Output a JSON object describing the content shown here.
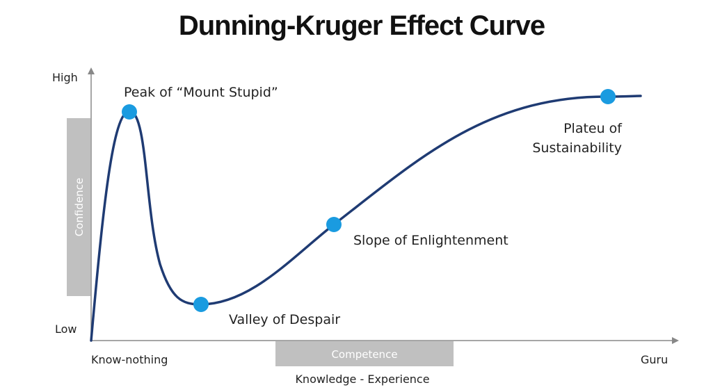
{
  "title": "Dunning-Kruger Effect Curve",
  "y_axis": {
    "high_label": "High",
    "low_label": "Low",
    "band_label": "Confidence"
  },
  "x_axis": {
    "start_label": "Know-nothing",
    "end_label": "Guru",
    "band_label": "Competence",
    "caption": "Knowledge - Experience"
  },
  "stages": {
    "peak": {
      "line1": "Peak of “Mount Stupid”"
    },
    "valley": {
      "line1": "Valley of Despair"
    },
    "slope": {
      "line1": "Slope of Enlightenment"
    },
    "plateau": {
      "line1": "Plateu of",
      "line2": "Sustainability"
    }
  },
  "colors": {
    "curve": "#1f3b73",
    "marker": "#1a9be0",
    "band": "#c0c0c0",
    "axis": "#888888"
  }
}
